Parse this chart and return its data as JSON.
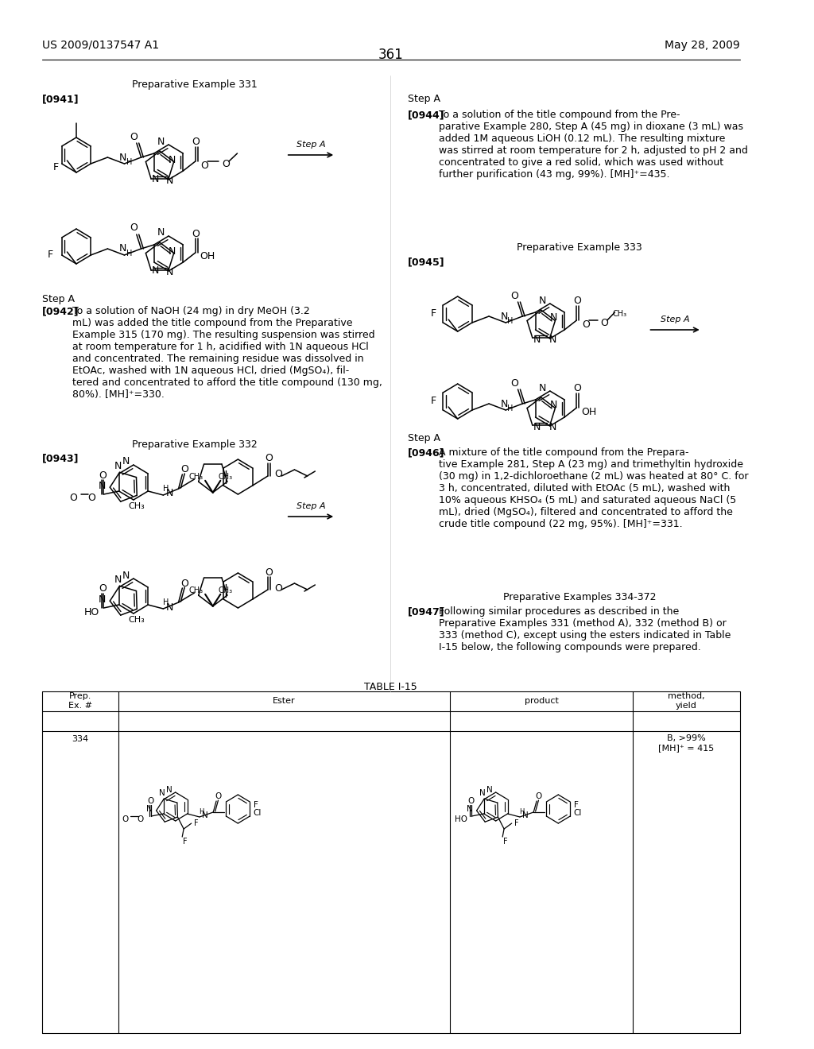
{
  "header_left": "US 2009/0137547 A1",
  "header_right": "May 28, 2009",
  "page_number": "361",
  "bg": "#ffffff",
  "text_color": "#000000",
  "title_331": "Preparative Example 331",
  "label_941": "[0941]",
  "step_a_left1": "Step A",
  "para_942_label": "[0942]",
  "para_942": "To a solution of NaOH (24 mg) in dry MeOH (3.2\nmL) was added the title compound from the Preparative\nExample 315 (170 mg). The resulting suspension was stirred\nat room temperature for 1 h, acidified with 1N aqueous HCl\nand concentrated. The remaining residue was dissolved in\nEtOAc, washed with 1N aqueous HCl, dried (MgSO₄), fil-\ntered and concentrated to afford the title compound (130 mg,\n80%). [MH]⁺=330.",
  "title_332": "Preparative Example 332",
  "label_943": "[0943]",
  "step_a_left2": "Step A",
  "step_a_right1": "Step A",
  "para_944_label": "[0944]",
  "para_944": "To a solution of the title compound from the Pre-\nparative Example 280, Step A (45 mg) in dioxane (3 mL) was\nadded 1M aqueous LiOH (0.12 mL). The resulting mixture\nwas stirred at room temperature for 2 h, adjusted to pH 2 and\nconcentrated to give a red solid, which was used without\nfurther purification (43 mg, 99%). [MH]⁺=435.",
  "title_333": "Preparative Example 333",
  "label_945": "[0945]",
  "step_a_right2": "Step A",
  "para_946_label": "[0946]",
  "para_946": "A mixture of the title compound from the Prepara-\ntive Example 281, Step A (23 mg) and trimethyltin hydroxide\n(30 mg) in 1,2-dichloroethane (2 mL) was heated at 80° C. for\n3 h, concentrated, diluted with EtOAc (5 mL), washed with\n10% aqueous KHSO₄ (5 mL) and saturated aqueous NaCl (5\nmL), dried (MgSO₄), filtered and concentrated to afford the\ncrude title compound (22 mg, 95%). [MH]⁺=331.",
  "title_334_372": "Preparative Examples 334-372",
  "para_947_label": "[0947]",
  "para_947": "Following similar procedures as described in the\nPreparative Examples 331 (method A), 332 (method B) or\n333 (method C), except using the esters indicated in Table\nI-15 below, the following compounds were prepared.",
  "table_title": "TABLE I-15",
  "table_headers": [
    "Prep.\nEx. #",
    "Ester",
    "product",
    "method,\nyield"
  ],
  "table_row_prep": "334",
  "table_row_yield": "B, >99%\n[MH]⁺ = 415"
}
